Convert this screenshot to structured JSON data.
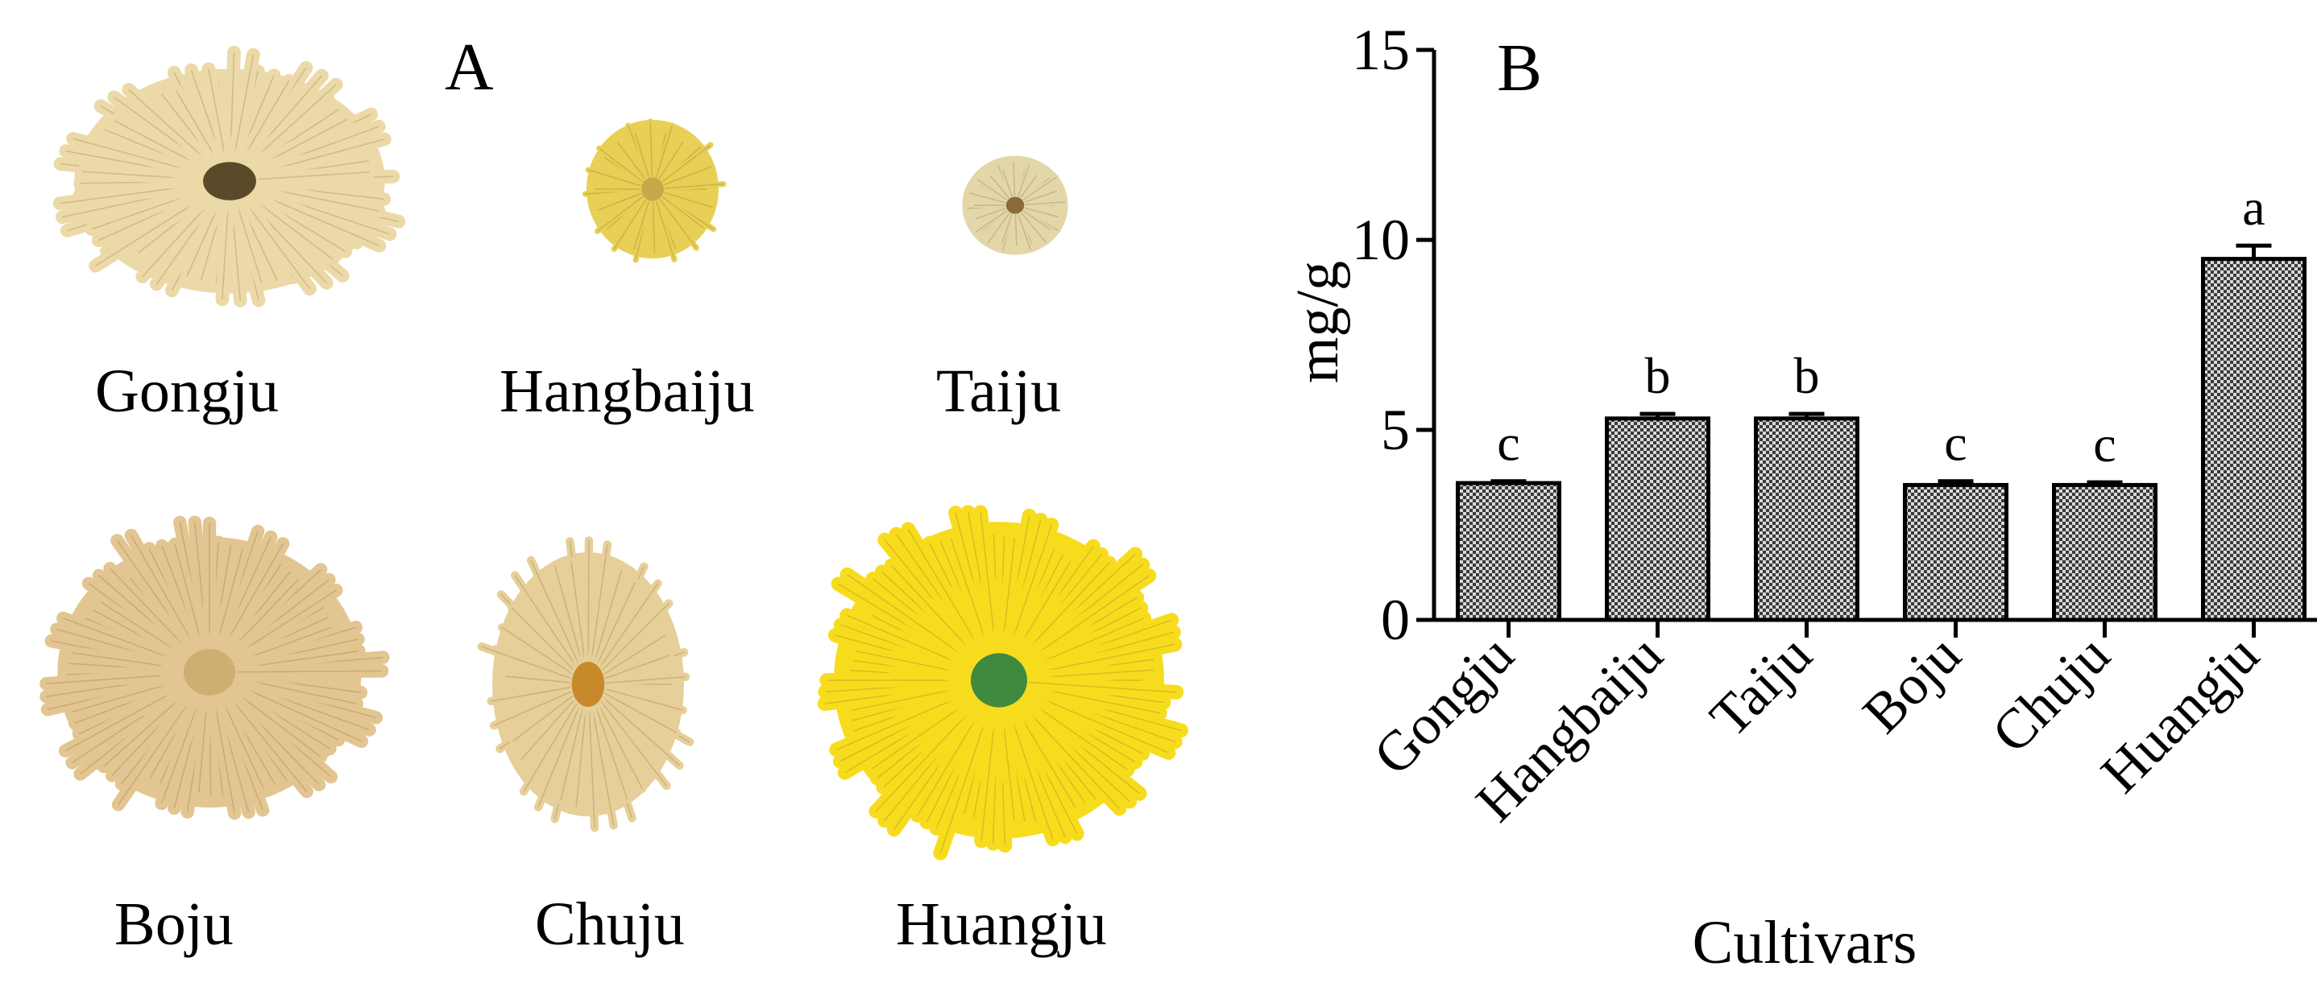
{
  "panel_a": {
    "label": "A",
    "flowers": [
      {
        "name": "Gongju",
        "color": "#ecd9a8",
        "center": "#5a4a2a"
      },
      {
        "name": "Hangbaiju",
        "color": "#e8cf55",
        "center": "#c9a84a"
      },
      {
        "name": "Taiju",
        "color": "#e3d6a8",
        "center": "#8a6a3a"
      },
      {
        "name": "Boju",
        "color": "#e2c590",
        "center": "#cfae74"
      },
      {
        "name": "Chuju",
        "color": "#e6cf98",
        "center": "#c7892a"
      },
      {
        "name": "Huangju",
        "color": "#f7dc1e",
        "center": "#3f8a3f"
      }
    ]
  },
  "chart_data": {
    "panel_label": "B",
    "type": "bar",
    "title": "",
    "xlabel": "Cultivars",
    "ylabel": "mg/g",
    "ylim": [
      0,
      15
    ],
    "yticks": [
      0,
      5,
      10,
      15
    ],
    "categories": [
      "Gongju",
      "Hangbaiju",
      "Taiju",
      "Boju",
      "Chuju",
      "Huangju"
    ],
    "values": [
      3.6,
      5.3,
      5.3,
      3.55,
      3.55,
      9.5
    ],
    "errors": [
      0.05,
      0.12,
      0.12,
      0.1,
      0.07,
      0.35
    ],
    "significance_letters": [
      "c",
      "b",
      "b",
      "c",
      "c",
      "a"
    ],
    "bar_fill": "checkered gray"
  }
}
